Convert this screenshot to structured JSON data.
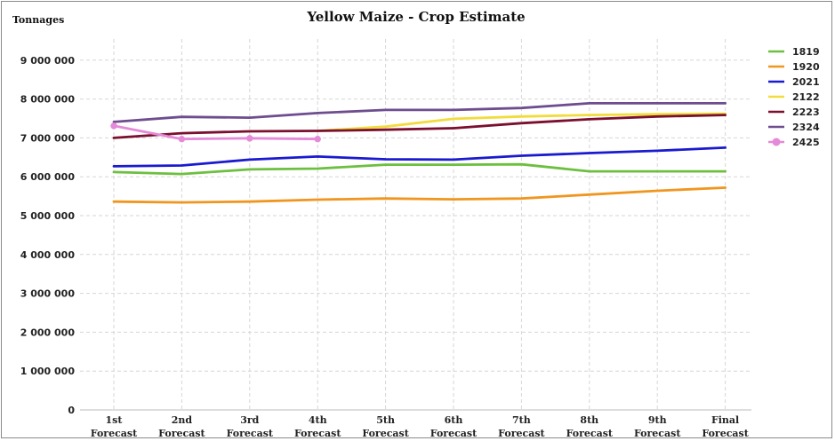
{
  "chart_data": {
    "type": "line",
    "title": "Yellow Maize - Crop Estimate",
    "ylabel": "Tonnages",
    "xlabel": "",
    "ylim": [
      0,
      9500000
    ],
    "yticks": [
      0,
      1000000,
      2000000,
      3000000,
      4000000,
      5000000,
      6000000,
      7000000,
      8000000,
      9000000
    ],
    "ytick_labels": [
      "0",
      "1 000 000",
      "2 000 000",
      "3 000 000",
      "4 000 000",
      "5 000 000",
      "6 000 000",
      "7 000 000",
      "8 000 000",
      "9 000 000"
    ],
    "categories": [
      [
        "1st",
        "Forecast"
      ],
      [
        "2nd",
        "Forecast"
      ],
      [
        "3rd",
        "Forecast"
      ],
      [
        "4th",
        "Forecast"
      ],
      [
        "5th",
        "Forecast"
      ],
      [
        "6th",
        "Forecast"
      ],
      [
        "7th",
        "Forecast"
      ],
      [
        "8th",
        "Forecast"
      ],
      [
        "9th",
        "Forecast"
      ],
      [
        "Final",
        "Forecast"
      ]
    ],
    "grid": true,
    "legend_position": "right",
    "series": [
      {
        "name": "1819",
        "color": "#6cbf3f",
        "marker": false,
        "values": [
          6120000,
          6070000,
          6190000,
          6210000,
          6310000,
          6310000,
          6320000,
          6140000,
          6140000,
          6140000
        ]
      },
      {
        "name": "1920",
        "color": "#f0961e",
        "marker": false,
        "values": [
          5360000,
          5340000,
          5360000,
          5410000,
          5440000,
          5420000,
          5440000,
          5540000,
          5640000,
          5720000
        ]
      },
      {
        "name": "2021",
        "color": "#1a1ad0",
        "marker": false,
        "values": [
          6270000,
          6290000,
          6440000,
          6520000,
          6450000,
          6440000,
          6540000,
          6610000,
          6670000,
          6750000
        ]
      },
      {
        "name": "2122",
        "color": "#f2dc3c",
        "marker": false,
        "values": [
          null,
          null,
          null,
          7180000,
          7290000,
          7490000,
          7550000,
          7590000,
          7610000,
          7620000
        ]
      },
      {
        "name": "2223",
        "color": "#7a0f2e",
        "marker": false,
        "values": [
          7000000,
          7120000,
          7170000,
          7180000,
          7210000,
          7250000,
          7380000,
          7480000,
          7550000,
          7590000
        ]
      },
      {
        "name": "2324",
        "color": "#6e4d8f",
        "marker": false,
        "values": [
          7410000,
          7540000,
          7520000,
          7640000,
          7720000,
          7720000,
          7770000,
          7890000,
          7890000,
          7890000
        ]
      },
      {
        "name": "2425",
        "color": "#e48ad8",
        "marker": true,
        "values": [
          7310000,
          6970000,
          6990000,
          6970000,
          null,
          null,
          null,
          null,
          null,
          null
        ]
      }
    ]
  }
}
